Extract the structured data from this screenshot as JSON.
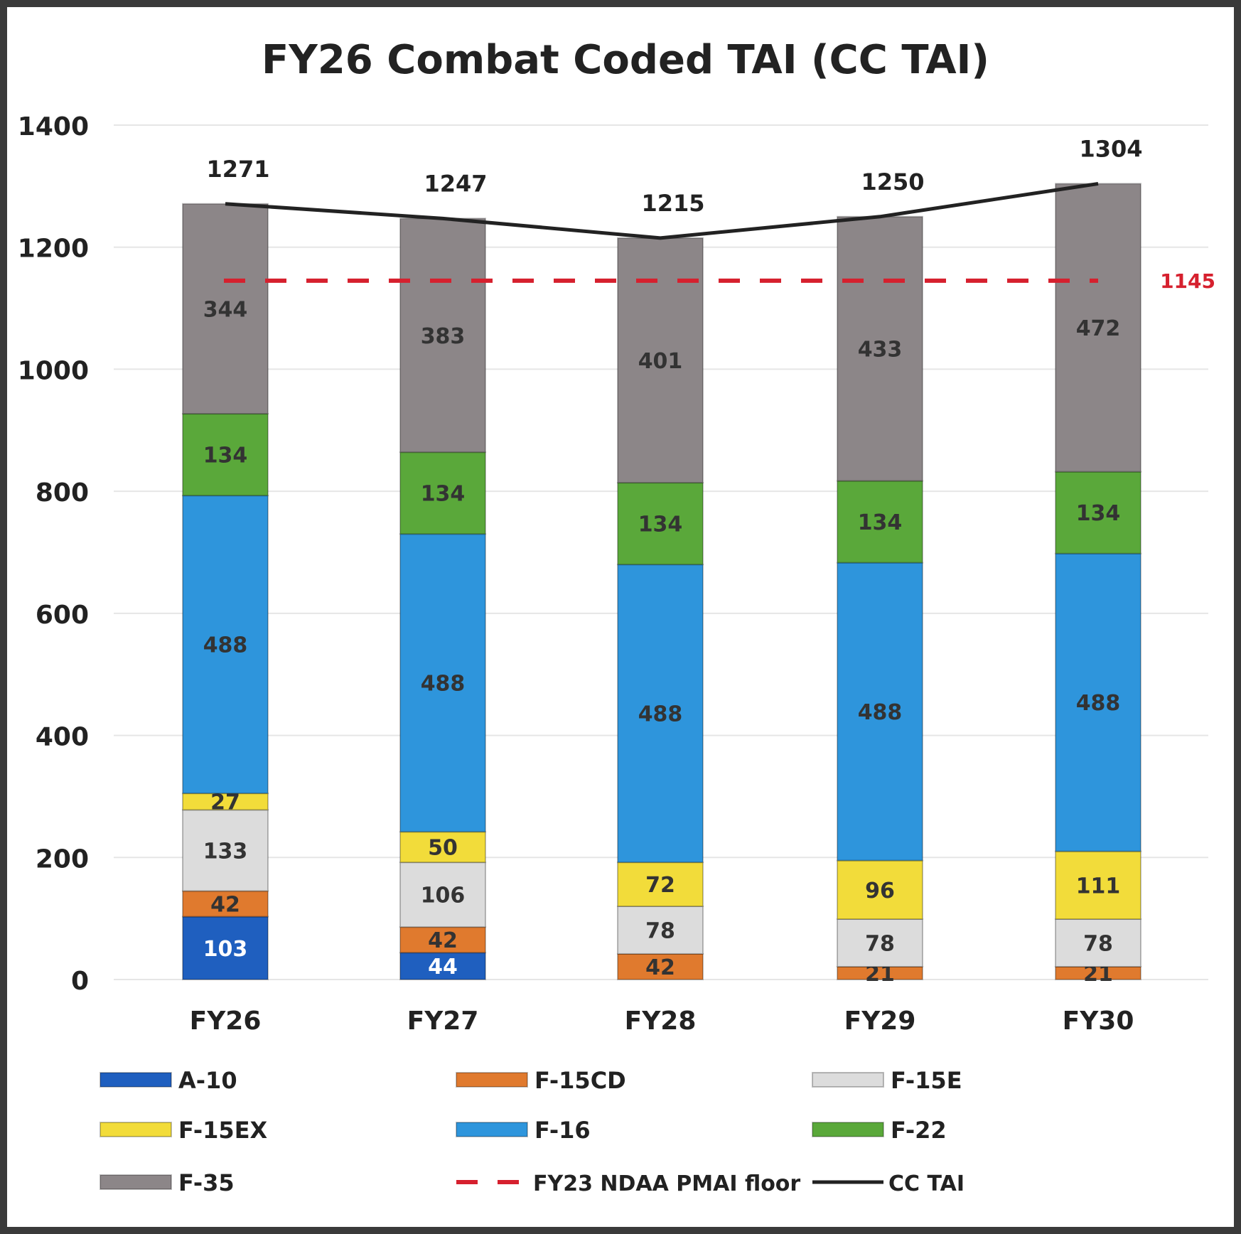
{
  "chart_data": {
    "type": "bar",
    "stacked": true,
    "title": "FY26 Combat Coded TAI (CC TAI)",
    "xlabel": "",
    "ylabel": "",
    "ylim": [
      0,
      1400
    ],
    "yticks": [
      0,
      200,
      400,
      600,
      800,
      1000,
      1200,
      1400
    ],
    "grid": true,
    "legend_position": "bottom",
    "categories": [
      "FY26",
      "FY27",
      "FY28",
      "FY29",
      "FY30"
    ],
    "series": [
      {
        "name": "A-10",
        "color": "#1f5fbf",
        "values": [
          103,
          44,
          0,
          0,
          0
        ]
      },
      {
        "name": "F-15CD",
        "color": "#e07a2e",
        "values": [
          42,
          42,
          42,
          21,
          21
        ]
      },
      {
        "name": "F-15E",
        "color": "#dcdcdc",
        "values": [
          133,
          106,
          78,
          78,
          78
        ]
      },
      {
        "name": "F-15EX",
        "color": "#f2dc3a",
        "values": [
          27,
          50,
          72,
          96,
          111
        ]
      },
      {
        "name": "F-16",
        "color": "#2e95dc",
        "values": [
          488,
          488,
          488,
          488,
          488
        ]
      },
      {
        "name": "F-22",
        "color": "#5aa83a",
        "values": [
          134,
          134,
          134,
          134,
          134
        ]
      },
      {
        "name": "F-35",
        "color": "#8c8688",
        "values": [
          344,
          383,
          401,
          433,
          472
        ]
      }
    ],
    "lines": [
      {
        "name": "FY23 NDAA PMAI floor",
        "style": "dashed",
        "color": "#d6202e",
        "value": 1145,
        "label": "1145"
      },
      {
        "name": "CC TAI",
        "style": "solid",
        "color": "#222222",
        "values": [
          1271,
          1247,
          1215,
          1250,
          1304
        ]
      }
    ]
  }
}
